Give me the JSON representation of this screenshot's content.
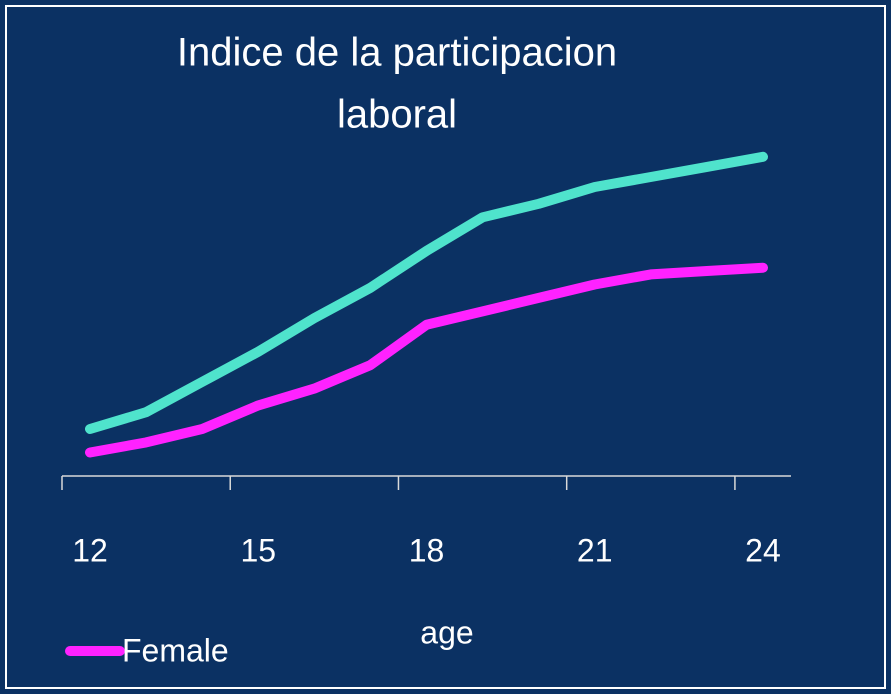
{
  "chart_data": {
    "type": "line",
    "title": [
      "Indice de la participacion",
      "laboral"
    ],
    "x_label": "age",
    "categories": [
      "12",
      null,
      null,
      "15",
      null,
      null,
      "18",
      null,
      null,
      "21",
      null,
      null,
      "24"
    ],
    "series": [
      {
        "color": "#4fe3cc",
        "values": [
          14,
          19,
          28,
          37,
          47,
          56,
          67,
          77,
          81,
          86,
          89,
          92,
          95
        ]
      },
      {
        "name": "Female",
        "color": "#ff22ff",
        "values": [
          7,
          10,
          14,
          21,
          26,
          33,
          45,
          49,
          53,
          57,
          60,
          61,
          62
        ]
      }
    ],
    "ylim": [
      0,
      100
    ],
    "legend": "bottom-left"
  }
}
